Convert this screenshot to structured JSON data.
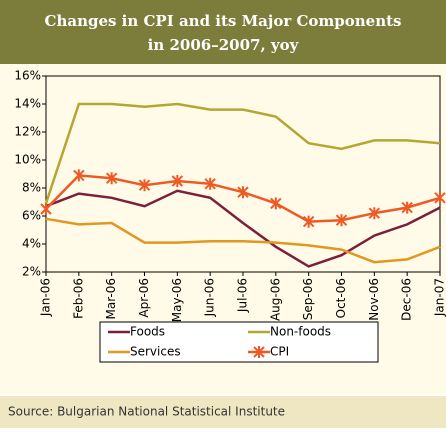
{
  "chart_data": {
    "type": "line",
    "title": [
      "Changes in CPI and its Major Components",
      "in 2006–2007, yoy"
    ],
    "source": "Source:  Bulgarian National Statistical Institute",
    "categories": [
      "Jan-06",
      "Feb-06",
      "Mar-06",
      "Apr-06",
      "May-06",
      "Jun-06",
      "Jul-06",
      "Aug-06",
      "Sep-06",
      "Oct-06",
      "Nov-06",
      "Dec-06",
      "Jan-07"
    ],
    "series": [
      {
        "name": "Foods",
        "color": "#7b1f3a",
        "values": [
          6.7,
          7.6,
          7.3,
          6.7,
          7.8,
          7.3,
          5.5,
          3.8,
          2.4,
          3.2,
          4.6,
          5.4,
          6.6
        ]
      },
      {
        "name": "Non-foods",
        "color": "#b5a631",
        "values": [
          6.9,
          14.0,
          14.0,
          13.8,
          14.0,
          13.6,
          13.6,
          13.1,
          11.2,
          10.8,
          11.4,
          11.4,
          11.2
        ]
      },
      {
        "name": "Services",
        "color": "#e0981e",
        "values": [
          5.8,
          5.4,
          5.5,
          4.1,
          4.1,
          4.2,
          4.2,
          4.1,
          3.9,
          3.6,
          2.7,
          2.9,
          3.8
        ]
      },
      {
        "name": "CPI",
        "color": "#ef5a24",
        "marker": "star",
        "values": [
          6.5,
          8.9,
          8.7,
          8.2,
          8.5,
          8.3,
          7.7,
          6.9,
          5.6,
          5.7,
          6.2,
          6.6,
          7.3
        ]
      }
    ],
    "ylim": [
      2,
      16
    ],
    "yticks": [
      {
        "value": 2,
        "label": "2%"
      },
      {
        "value": 4,
        "label": "4%"
      },
      {
        "value": 6,
        "label": "6%"
      },
      {
        "value": 8,
        "label": "8%"
      },
      {
        "value": 10,
        "label": "10%"
      },
      {
        "value": 12,
        "label": "12%"
      },
      {
        "value": 14,
        "label": "14%"
      },
      {
        "value": 16,
        "label": "16%"
      }
    ],
    "grid": false
  }
}
